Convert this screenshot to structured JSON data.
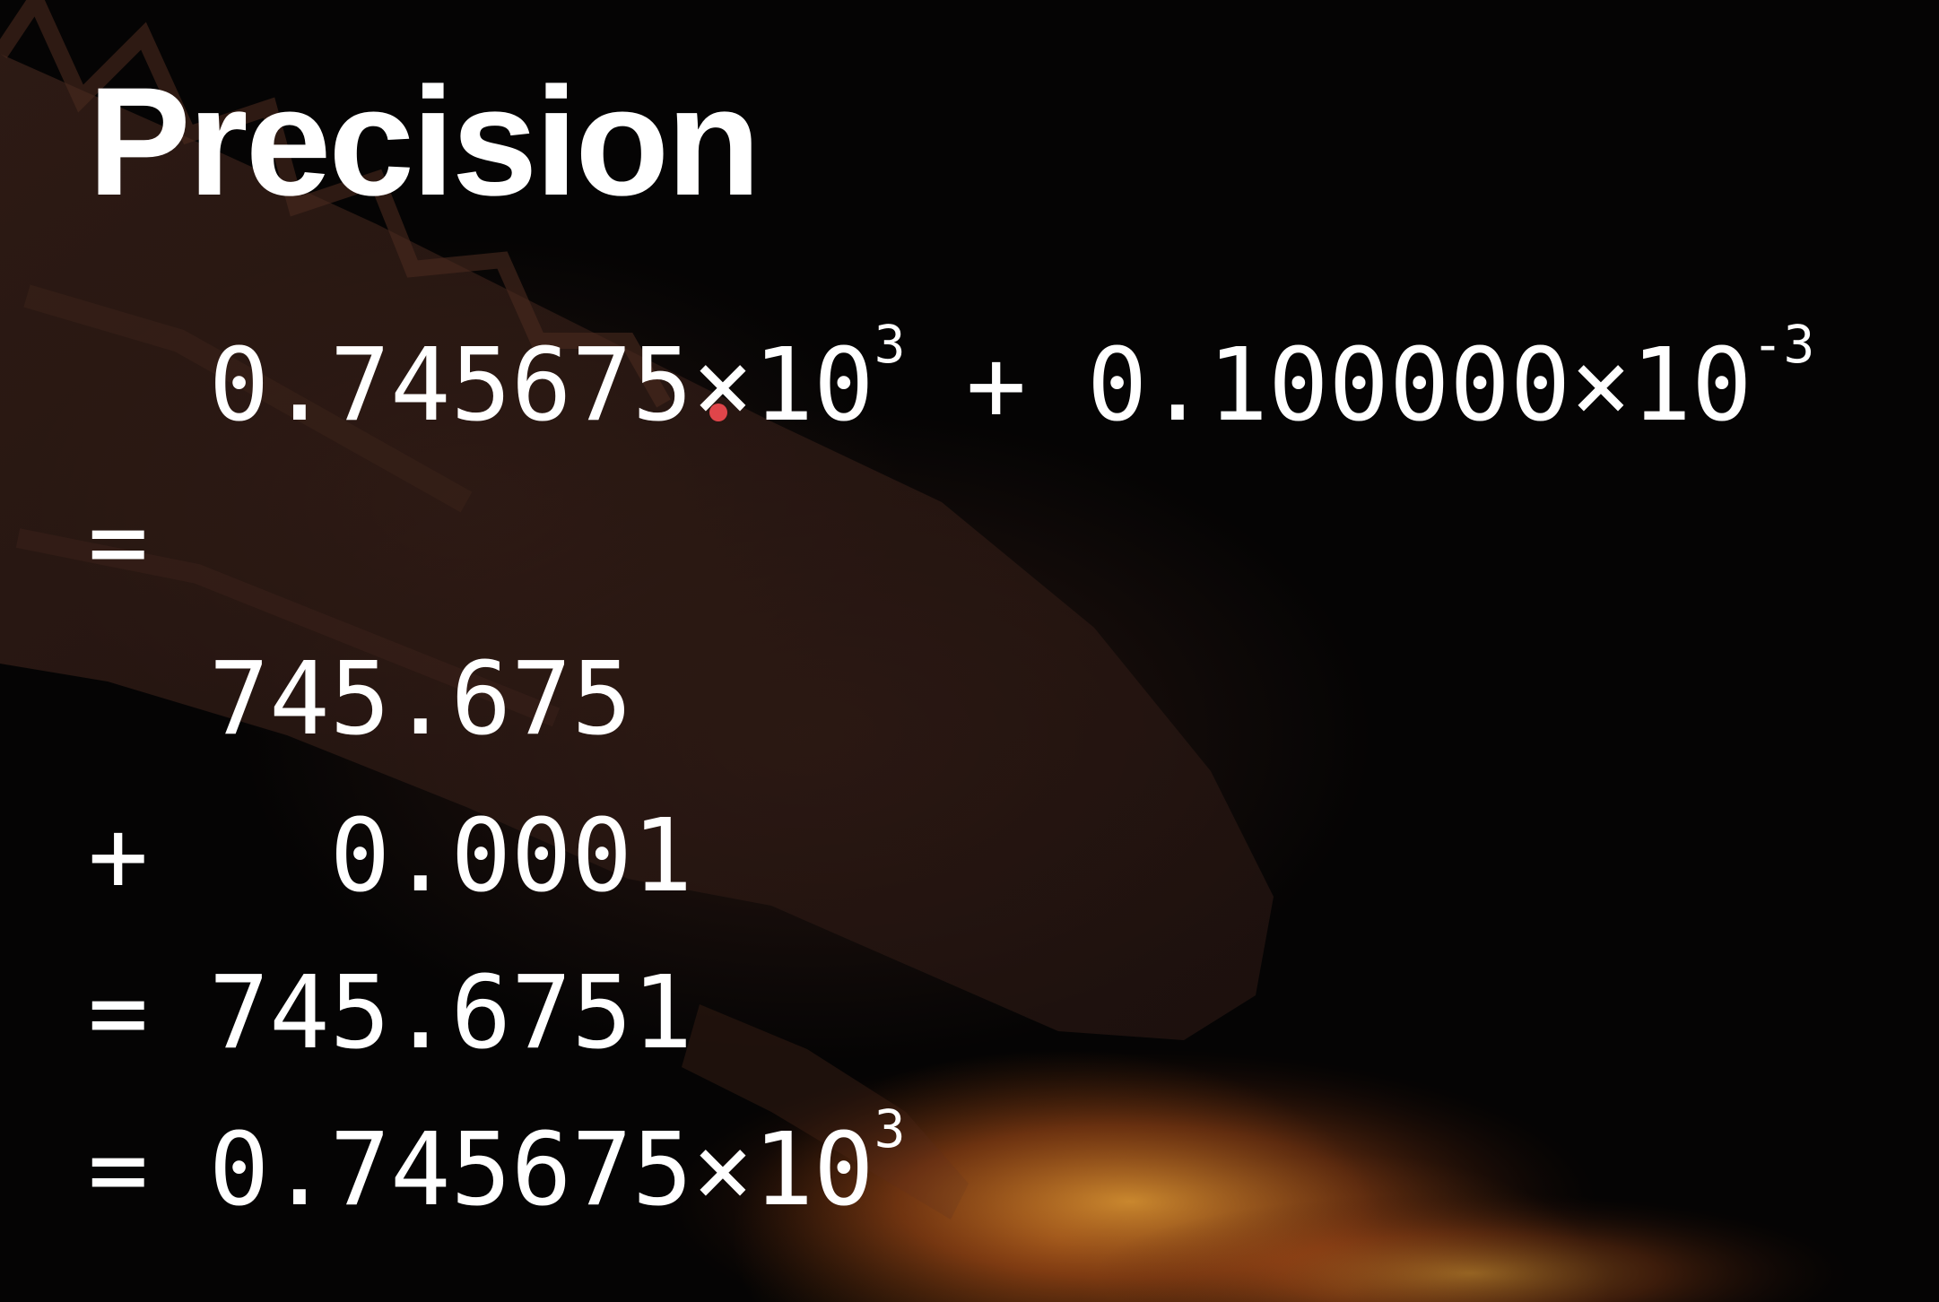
{
  "slide": {
    "title": "Precision",
    "background": "dragon-breathing-fire",
    "accent_colors": {
      "text": "#ffffff",
      "pointer": "#e0454a",
      "fire": "#c8661e"
    },
    "lines": [
      {
        "mantissa_a": "0.745675",
        "times_a": "×10",
        "exp_a": "3",
        "plus": " + ",
        "mantissa_b": "0.100000",
        "times_b": "×10",
        "exp_b": "-3"
      },
      {
        "text": "="
      },
      {
        "text": "  745.675"
      },
      {
        "text": "+   0.0001"
      },
      {
        "text": "= 745.6751"
      },
      {
        "prefix": "= ",
        "mantissa": "0.745675",
        "times": "×10",
        "exp": "3"
      }
    ]
  }
}
